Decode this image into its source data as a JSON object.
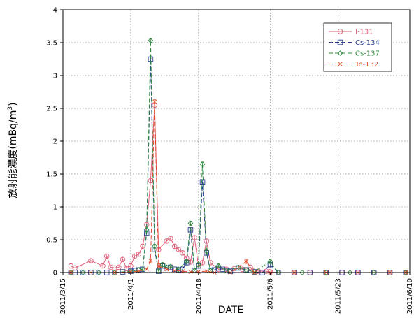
{
  "chart_data": {
    "type": "line",
    "title": "",
    "xlabel": "DATE",
    "ylabel": "放射能濃度(mBq/m³)",
    "ylabel_text": "放射能濃度(mBq/m",
    "ylabel_sup": "3",
    "ylabel_close": ")",
    "xlim": [
      "2011-03-15",
      "2011-06-10"
    ],
    "ylim": [
      0,
      4
    ],
    "x_tick_labels": [
      "2011/3/15",
      "2011/4/1",
      "2011/4/18",
      "2011/5/6",
      "2011/5/23",
      "2011/6/10"
    ],
    "x_tick_dates": [
      "2011-03-15",
      "2011-04-01",
      "2011-04-18",
      "2011-05-06",
      "2011-05-23",
      "2011-06-10"
    ],
    "y_ticks": [
      0,
      0.5,
      1,
      1.5,
      2,
      2.5,
      3,
      3.5,
      4
    ],
    "y_tick_labels": [
      "0",
      "0.5",
      "1",
      "1.5",
      "2",
      "2.5",
      "3",
      "3.5",
      "4"
    ],
    "grid": true,
    "legend_position": "top-right",
    "series": [
      {
        "name": "I-131",
        "color": "#e0607a",
        "marker": "circle",
        "dash": "solid",
        "points": [
          [
            "2011-03-17",
            0.1
          ],
          [
            "2011-03-18",
            0.07
          ],
          [
            "2011-03-22",
            0.18
          ],
          [
            "2011-03-25",
            0.1
          ],
          [
            "2011-03-26",
            0.25
          ],
          [
            "2011-03-27",
            0.08
          ],
          [
            "2011-03-28",
            0.07
          ],
          [
            "2011-03-29",
            0.08
          ],
          [
            "2011-03-30",
            0.2
          ],
          [
            "2011-03-31",
            0.06
          ],
          [
            "2011-04-01",
            0.1
          ],
          [
            "2011-04-02",
            0.25
          ],
          [
            "2011-04-03",
            0.28
          ],
          [
            "2011-04-04",
            0.4
          ],
          [
            "2011-04-05",
            0.73
          ],
          [
            "2011-04-06",
            1.4
          ],
          [
            "2011-04-07",
            2.55
          ],
          [
            "2011-04-08",
            0.35
          ],
          [
            "2011-04-10",
            0.48
          ],
          [
            "2011-04-11",
            0.52
          ],
          [
            "2011-04-12",
            0.4
          ],
          [
            "2011-04-13",
            0.35
          ],
          [
            "2011-04-14",
            0.3
          ],
          [
            "2011-04-15",
            0.22
          ],
          [
            "2011-04-16",
            0.16
          ],
          [
            "2011-04-17",
            0.53
          ],
          [
            "2011-04-18",
            0.1
          ],
          [
            "2011-04-19",
            0.15
          ],
          [
            "2011-04-20",
            0.48
          ],
          [
            "2011-04-21",
            0.15
          ],
          [
            "2011-04-23",
            0.05
          ],
          [
            "2011-04-25",
            0.05
          ],
          [
            "2011-04-27",
            0.06
          ],
          [
            "2011-04-29",
            0.05
          ],
          [
            "2011-05-01",
            0.08
          ],
          [
            "2011-05-03",
            0.02
          ],
          [
            "2011-05-05",
            0.02
          ],
          [
            "2011-05-06",
            0.01
          ],
          [
            "2011-05-08",
            0.0
          ],
          [
            "2011-05-12",
            0.0
          ],
          [
            "2011-05-16",
            0.0
          ],
          [
            "2011-05-20",
            0.0
          ],
          [
            "2011-05-24",
            0.0
          ],
          [
            "2011-05-28",
            0.0
          ],
          [
            "2011-06-01",
            0.0
          ],
          [
            "2011-06-05",
            0.0
          ],
          [
            "2011-06-09",
            0.0
          ]
        ]
      },
      {
        "name": "Cs-134",
        "color": "#2a3f8f",
        "marker": "square",
        "dash": "dashed",
        "points": [
          [
            "2011-03-17",
            0.0
          ],
          [
            "2011-03-18",
            0.0
          ],
          [
            "2011-03-20",
            0.0
          ],
          [
            "2011-03-22",
            0.0
          ],
          [
            "2011-03-24",
            0.0
          ],
          [
            "2011-03-26",
            0.0
          ],
          [
            "2011-03-28",
            0.0
          ],
          [
            "2011-03-30",
            0.01
          ],
          [
            "2011-04-01",
            0.02
          ],
          [
            "2011-04-02",
            0.03
          ],
          [
            "2011-04-03",
            0.04
          ],
          [
            "2011-04-04",
            0.05
          ],
          [
            "2011-04-05",
            0.6
          ],
          [
            "2011-04-06",
            3.25
          ],
          [
            "2011-04-07",
            0.35
          ],
          [
            "2011-04-08",
            0.02
          ],
          [
            "2011-04-09",
            0.1
          ],
          [
            "2011-04-10",
            0.07
          ],
          [
            "2011-04-11",
            0.08
          ],
          [
            "2011-04-12",
            0.05
          ],
          [
            "2011-04-13",
            0.04
          ],
          [
            "2011-04-14",
            0.05
          ],
          [
            "2011-04-15",
            0.15
          ],
          [
            "2011-04-16",
            0.65
          ],
          [
            "2011-04-17",
            0.03
          ],
          [
            "2011-04-18",
            0.1
          ],
          [
            "2011-04-19",
            1.38
          ],
          [
            "2011-04-20",
            0.3
          ],
          [
            "2011-04-21",
            0.03
          ],
          [
            "2011-04-22",
            0.04
          ],
          [
            "2011-04-23",
            0.07
          ],
          [
            "2011-04-24",
            0.05
          ],
          [
            "2011-04-25",
            0.03
          ],
          [
            "2011-04-26",
            0.02
          ],
          [
            "2011-04-28",
            0.07
          ],
          [
            "2011-04-30",
            0.04
          ],
          [
            "2011-05-02",
            0.01
          ],
          [
            "2011-05-04",
            0.0
          ],
          [
            "2011-05-06",
            0.12
          ],
          [
            "2011-05-08",
            0.0
          ],
          [
            "2011-05-12",
            0.0
          ],
          [
            "2011-05-16",
            0.0
          ],
          [
            "2011-05-20",
            0.0
          ],
          [
            "2011-05-24",
            0.0
          ],
          [
            "2011-05-28",
            0.0
          ],
          [
            "2011-06-01",
            0.0
          ],
          [
            "2011-06-05",
            0.0
          ],
          [
            "2011-06-09",
            0.0
          ]
        ]
      },
      {
        "name": "Cs-137",
        "color": "#2e8b3e",
        "marker": "diamond",
        "dash": "dashed",
        "points": [
          [
            "2011-03-17",
            0.0
          ],
          [
            "2011-03-20",
            0.0
          ],
          [
            "2011-03-24",
            0.0
          ],
          [
            "2011-03-28",
            0.0
          ],
          [
            "2011-04-01",
            0.02
          ],
          [
            "2011-04-03",
            0.04
          ],
          [
            "2011-04-04",
            0.05
          ],
          [
            "2011-04-05",
            0.65
          ],
          [
            "2011-04-06",
            3.53
          ],
          [
            "2011-04-07",
            0.4
          ],
          [
            "2011-04-08",
            0.02
          ],
          [
            "2011-04-09",
            0.12
          ],
          [
            "2011-04-10",
            0.08
          ],
          [
            "2011-04-11",
            0.09
          ],
          [
            "2011-04-13",
            0.05
          ],
          [
            "2011-04-15",
            0.17
          ],
          [
            "2011-04-16",
            0.75
          ],
          [
            "2011-04-17",
            0.03
          ],
          [
            "2011-04-18",
            0.12
          ],
          [
            "2011-04-19",
            1.65
          ],
          [
            "2011-04-20",
            0.33
          ],
          [
            "2011-04-21",
            0.03
          ],
          [
            "2011-04-23",
            0.1
          ],
          [
            "2011-04-25",
            0.03
          ],
          [
            "2011-04-28",
            0.08
          ],
          [
            "2011-04-30",
            0.04
          ],
          [
            "2011-05-02",
            0.01
          ],
          [
            "2011-05-06",
            0.17
          ],
          [
            "2011-05-08",
            0.0
          ],
          [
            "2011-05-14",
            0.0
          ],
          [
            "2011-05-20",
            0.0
          ],
          [
            "2011-05-26",
            0.0
          ],
          [
            "2011-06-01",
            0.0
          ],
          [
            "2011-06-09",
            0.0
          ]
        ]
      },
      {
        "name": "Te-132",
        "color": "#e04a2a",
        "marker": "x",
        "dash": "dashed",
        "points": [
          [
            "2011-03-17",
            0.0
          ],
          [
            "2011-03-22",
            0.0
          ],
          [
            "2011-03-28",
            0.0
          ],
          [
            "2011-04-01",
            0.01
          ],
          [
            "2011-04-03",
            0.02
          ],
          [
            "2011-04-05",
            0.05
          ],
          [
            "2011-04-06",
            0.18
          ],
          [
            "2011-04-07",
            2.6
          ],
          [
            "2011-04-08",
            0.1
          ],
          [
            "2011-04-10",
            0.05
          ],
          [
            "2011-04-12",
            0.03
          ],
          [
            "2011-04-14",
            0.02
          ],
          [
            "2011-04-16",
            0.01
          ],
          [
            "2011-04-18",
            0.01
          ],
          [
            "2011-04-20",
            0.02
          ],
          [
            "2011-04-22",
            0.0
          ],
          [
            "2011-04-26",
            0.0
          ],
          [
            "2011-04-30",
            0.17
          ],
          [
            "2011-05-02",
            0.0
          ],
          [
            "2011-05-06",
            0.0
          ],
          [
            "2011-05-12",
            0.0
          ],
          [
            "2011-05-20",
            0.0
          ],
          [
            "2011-05-28",
            0.0
          ],
          [
            "2011-06-05",
            0.0
          ],
          [
            "2011-06-09",
            0.0
          ]
        ]
      }
    ]
  }
}
